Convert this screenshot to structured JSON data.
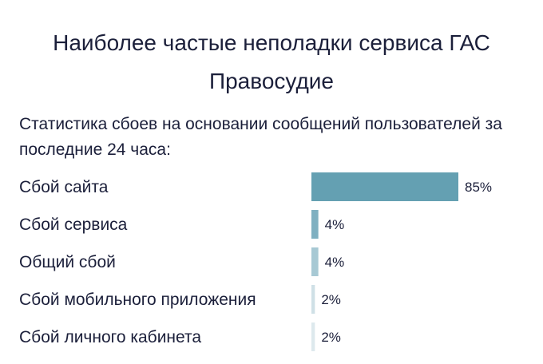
{
  "header": {
    "title": "Наиболее частые неполадки сервиса ГАС Правосудие",
    "subtitle": "Статистика сбоев на основании сообщений пользователей за последние 24 часа:"
  },
  "chart_data": {
    "type": "bar",
    "orientation": "horizontal",
    "categories": [
      "Сбой сайта",
      "Сбой сервиса",
      "Общий сбой",
      "Сбой мобильного приложения",
      "Сбой личного кабинета"
    ],
    "values": [
      85,
      4,
      4,
      2,
      2
    ],
    "value_labels": [
      "85%",
      "4%",
      "4%",
      "2%",
      "2%"
    ],
    "bar_colors": [
      "#64a0b2",
      "#7fb0c1",
      "#a7c9d4",
      "#cfe0e6",
      "#dde9ed"
    ],
    "xlim": [
      0,
      85
    ]
  }
}
